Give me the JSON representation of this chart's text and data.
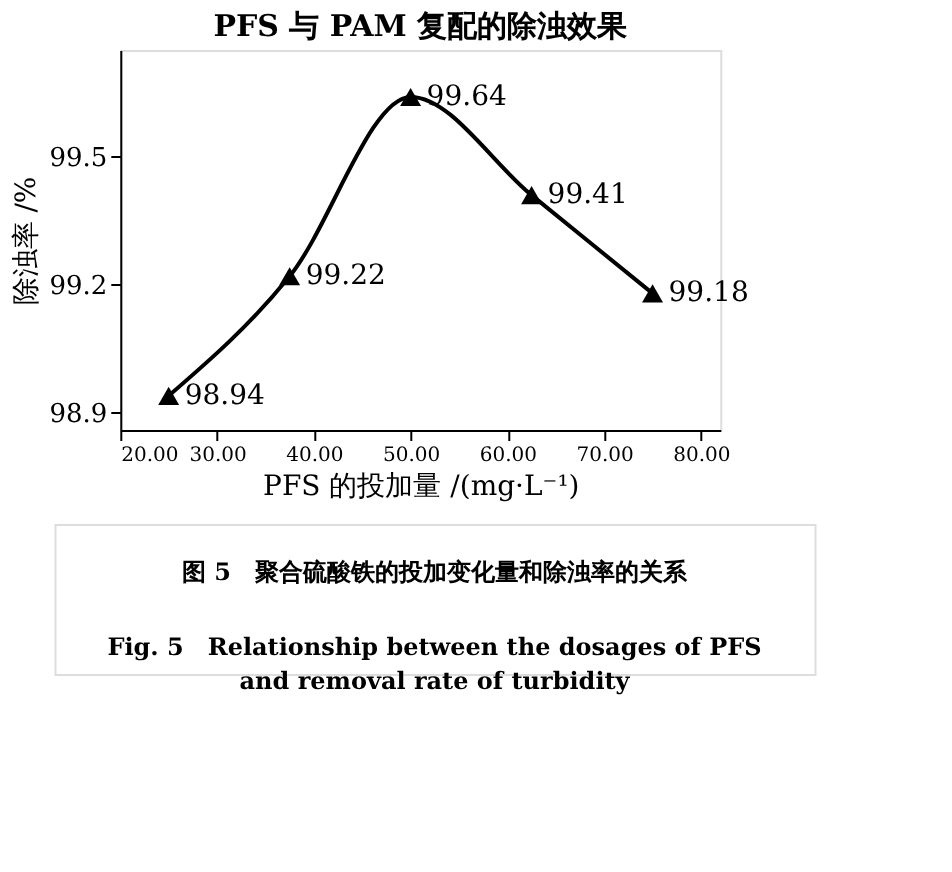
{
  "chart_data": {
    "type": "line",
    "title": "PFS 与 PAM 复配的除浊效果",
    "xlabel": "PFS 的投加量 /(mg·L⁻¹)",
    "ylabel": "除浊率 /%",
    "x": [
      25,
      37.5,
      50,
      62.5,
      75
    ],
    "series": [
      {
        "color": "#000000",
        "values": [
          98.94,
          99.22,
          99.64,
          99.41,
          99.18
        ]
      }
    ],
    "xlim": [
      20,
      82
    ],
    "xticks": [
      {
        "value": 20,
        "label": "20.00"
      },
      {
        "value": 30,
        "label": "30.00"
      },
      {
        "value": 40,
        "label": "40.00"
      },
      {
        "value": 50,
        "label": "50.00"
      },
      {
        "value": 60,
        "label": "60.00"
      },
      {
        "value": 70,
        "label": "70.00"
      },
      {
        "value": 80,
        "label": "80.00"
      }
    ],
    "ylim": [
      98.86,
      99.75
    ],
    "yticks": [
      98.9,
      99.2,
      99.5
    ],
    "marker": "triangle",
    "line_style": "solid",
    "data_labels": true,
    "grid": false,
    "annotations": [
      "图 5　聚合硫酸铁的投加变化量和除浊率的关系",
      "Fig. 5　Relationship between the dosages of PFS and removal rate of turbidity"
    ]
  }
}
